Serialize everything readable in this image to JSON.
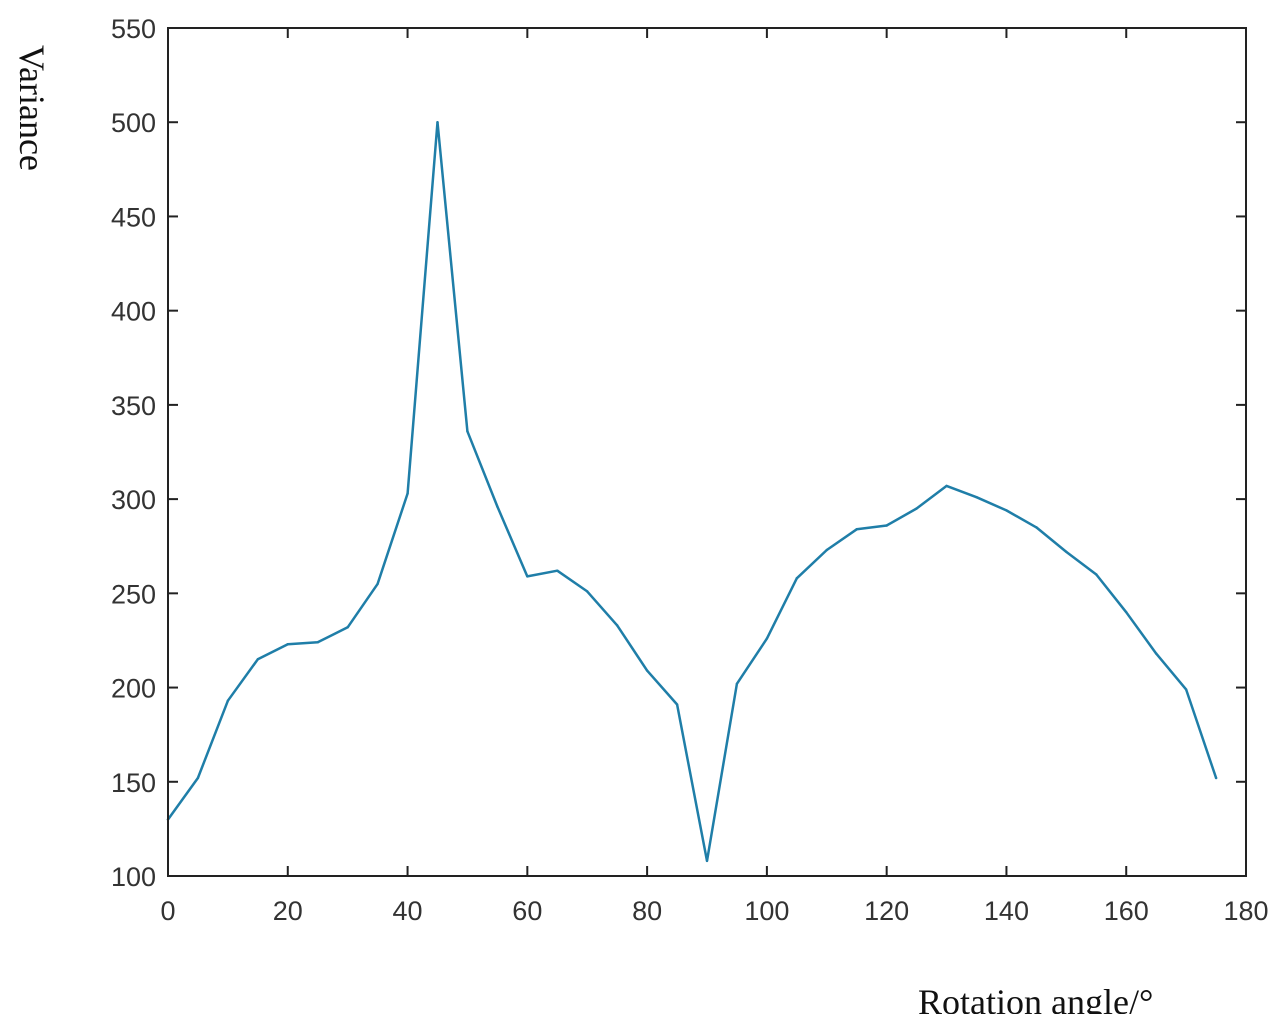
{
  "chart_data": {
    "type": "line",
    "title": "",
    "xlabel": "Rotation angle/°",
    "ylabel": "Variance",
    "xlim": [
      0,
      180
    ],
    "ylim": [
      100,
      550
    ],
    "xticks": [
      0,
      20,
      40,
      60,
      80,
      100,
      120,
      140,
      160,
      180
    ],
    "yticks": [
      100,
      150,
      200,
      250,
      300,
      350,
      400,
      450,
      500,
      550
    ],
    "grid": false,
    "legend": "none",
    "series": [
      {
        "color": "#1f7ea8",
        "x": [
          0,
          5,
          10,
          15,
          20,
          25,
          30,
          35,
          40,
          45,
          50,
          55,
          60,
          65,
          70,
          75,
          80,
          85,
          90,
          95,
          100,
          105,
          110,
          115,
          120,
          125,
          130,
          135,
          140,
          145,
          150,
          155,
          160,
          165,
          170,
          175
        ],
        "y": [
          130,
          152,
          193,
          215,
          223,
          224,
          232,
          255,
          303,
          500,
          336,
          296,
          259,
          262,
          251,
          233,
          209,
          191,
          108,
          202,
          226,
          258,
          273,
          284,
          286,
          295,
          307,
          301,
          294,
          285,
          272,
          260,
          240,
          218,
          199,
          152
        ]
      }
    ]
  },
  "colors": {
    "line": "#1f7ea8",
    "axis": "#222222",
    "tick_text": "#333333"
  }
}
